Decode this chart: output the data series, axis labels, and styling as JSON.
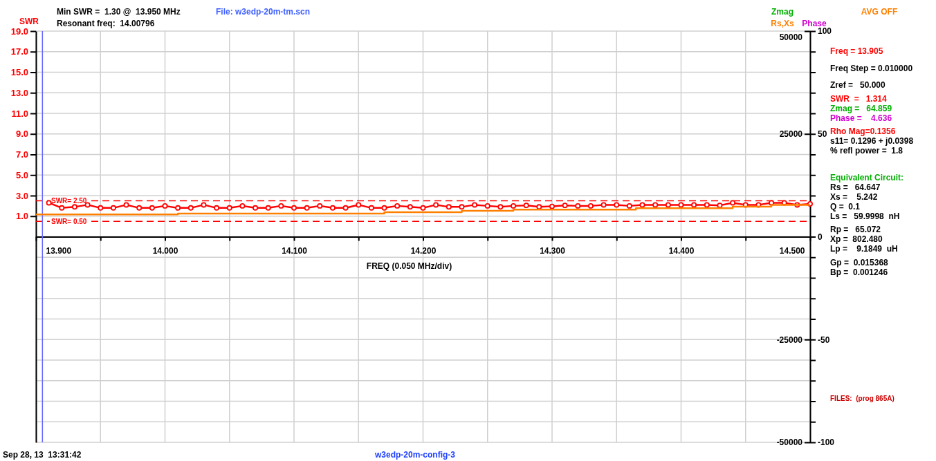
{
  "chart_data": {
    "type": "line",
    "ylabel": "SWR",
    "xlabel": "FREQ (0.050 MHz/div)",
    "xlim": [
      13.9,
      14.5
    ],
    "xticks": [
      {
        "value": 13.9,
        "label": "13.900"
      },
      {
        "value": 13.95,
        "label": null
      },
      {
        "value": 14.0,
        "label": "14.000"
      },
      {
        "value": 14.05,
        "label": null
      },
      {
        "value": 14.1,
        "label": "14.100"
      },
      {
        "value": 14.15,
        "label": null
      },
      {
        "value": 14.2,
        "label": "14.200"
      },
      {
        "value": 14.25,
        "label": null
      },
      {
        "value": 14.3,
        "label": "14.300"
      },
      {
        "value": 14.35,
        "label": null
      },
      {
        "value": 14.4,
        "label": "14.400"
      },
      {
        "value": 14.45,
        "label": null
      },
      {
        "value": 14.5,
        "label": "14.500"
      }
    ],
    "ylim": [
      -21,
      19
    ],
    "yticks": [
      {
        "value": 1,
        "label": "1.0"
      },
      {
        "value": 3,
        "label": "3.0"
      },
      {
        "value": 5,
        "label": "5.0"
      },
      {
        "value": 7,
        "label": "7.0"
      },
      {
        "value": 9,
        "label": "9.0"
      },
      {
        "value": 11,
        "label": "11.0"
      },
      {
        "value": 13,
        "label": "13.0"
      },
      {
        "value": 15,
        "label": "15.0"
      },
      {
        "value": 17,
        "label": "17.0"
      },
      {
        "value": 19,
        "label": "19.0"
      }
    ],
    "y2lim": [
      -100,
      100
    ],
    "y2ticks": [
      100,
      {
        "value": 90,
        "label": null
      },
      {
        "value": 80,
        "label": null
      },
      {
        "value": 70,
        "label": null
      },
      {
        "value": 60,
        "label": null
      },
      50,
      {
        "value": 40,
        "label": null
      },
      {
        "value": 30,
        "label": null
      },
      {
        "value": 20,
        "label": null
      },
      {
        "value": 10,
        "label": null
      },
      0,
      {
        "value": -10,
        "label": null
      },
      {
        "value": -20,
        "label": null
      },
      {
        "value": -30,
        "label": null
      },
      {
        "value": -40,
        "label": null
      },
      -50,
      {
        "value": -60,
        "label": null
      },
      {
        "value": -70,
        "label": null
      },
      {
        "value": -80,
        "label": null
      },
      {
        "value": -90,
        "label": null
      },
      -100
    ],
    "y3lim": [
      -50000,
      50000
    ],
    "y3ticks": [
      50000,
      25000,
      -25000,
      -50000
    ],
    "grid": true,
    "legend": "top right",
    "line_style": "solid",
    "series": [
      {
        "color": "#ff0000",
        "marker": "circle",
        "x": [
          13.91,
          13.92,
          13.93,
          13.94,
          13.95,
          13.96,
          13.97,
          13.98,
          13.99,
          14.0,
          14.01,
          14.02,
          14.03,
          14.04,
          14.05,
          14.06,
          14.07,
          14.08,
          14.09,
          14.1,
          14.11,
          14.12,
          14.13,
          14.14,
          14.15,
          14.16,
          14.17,
          14.18,
          14.19,
          14.2,
          14.21,
          14.22,
          14.23,
          14.24,
          14.25,
          14.26,
          14.27,
          14.28,
          14.29,
          14.3,
          14.31,
          14.32,
          14.33,
          14.34,
          14.35,
          14.36,
          14.37,
          14.38,
          14.39,
          14.4,
          14.41,
          14.42,
          14.43,
          14.44,
          14.45,
          14.46,
          14.47,
          14.48,
          14.49,
          14.5
        ],
        "values": [
          2.3,
          1.8,
          1.9,
          2.1,
          1.8,
          1.8,
          2.1,
          1.8,
          1.8,
          2.0,
          1.8,
          1.8,
          2.1,
          1.8,
          1.8,
          2.0,
          1.8,
          1.8,
          2.0,
          1.8,
          1.8,
          2.0,
          1.8,
          1.8,
          2.1,
          1.8,
          1.8,
          2.0,
          1.9,
          1.8,
          2.1,
          1.9,
          1.9,
          2.1,
          2.0,
          1.9,
          2.0,
          2.05,
          1.9,
          1.95,
          2.05,
          2.0,
          2.0,
          2.1,
          2.1,
          2.0,
          2.1,
          2.1,
          2.1,
          2.1,
          2.1,
          2.1,
          2.05,
          2.3,
          2.1,
          2.1,
          2.3,
          2.3,
          2.1,
          2.2
        ]
      },
      {
        "name": "Rs,Xs",
        "type": "step",
        "axis": "y2",
        "color": "#ff8000",
        "x": [
          13.9,
          14.01,
          14.17,
          14.23,
          14.27,
          14.365,
          14.44,
          14.47,
          14.5
        ],
        "values": [
          10.8,
          11.3,
          11.9,
          12.6,
          13.2,
          13.9,
          14.6,
          15.5,
          15.5
        ]
      }
    ],
    "ref_lines": [
      {
        "axis": "y",
        "value": 2.5,
        "label": "SWR= 2.50",
        "color": "#ff0000",
        "line_style": "dashed"
      },
      {
        "axis": "y",
        "value": 0.5,
        "label": "SWR= 0.50",
        "color": "#ff0000",
        "line_style": "dashed"
      },
      {
        "axis": "x",
        "value": 13.905,
        "color": "#6666ff",
        "line_style": "solid"
      }
    ],
    "annotations": [
      "Min SWR =  1.30 @  13.950 MHz",
      "Resonant freq:  14.00796",
      "File: w3edp-20m-tm.scn",
      "Zmag",
      "Phase",
      "AVG OFF",
      "Freq = 13.905",
      "Freq Step = 0.010000",
      "Zref =   50.000",
      "SWR  =   1.314",
      "Zmag =   64.859",
      "Phase =    4.636",
      "Rho Mag=0.1356",
      "s11= 0.1296 + j0.0398",
      "% refl power =  1.8",
      "Equivalent Circuit:",
      "Rs =   64.647",
      "Xs =    5.242",
      "Q =  0.1",
      "Ls =   59.9998  nH",
      "Rp =   65.072",
      "Xp =  802.480",
      "Lp =    9.1849  uH",
      "Gp =  0.015368",
      "Bp =  0.001246",
      "FILES:  (prog 865A)",
      "Sep 28, 13  13:31:42",
      "w3edp-20m-config-3"
    ]
  }
}
